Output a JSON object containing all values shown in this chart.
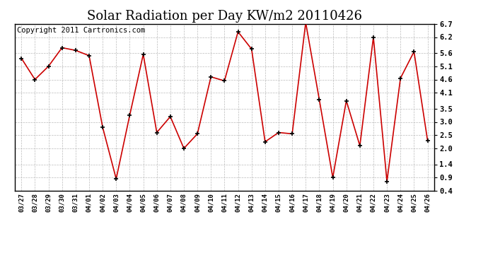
{
  "title": "Solar Radiation per Day KW/m2 20110426",
  "copyright": "Copyright 2011 Cartronics.com",
  "dates": [
    "03/27",
    "03/28",
    "03/29",
    "03/30",
    "03/31",
    "04/01",
    "04/02",
    "04/03",
    "04/04",
    "04/05",
    "04/06",
    "04/07",
    "04/08",
    "04/09",
    "04/10",
    "04/11",
    "04/12",
    "04/13",
    "04/14",
    "04/15",
    "04/16",
    "04/17",
    "04/18",
    "04/19",
    "04/20",
    "04/21",
    "04/22",
    "04/23",
    "04/24",
    "04/25",
    "04/26"
  ],
  "values": [
    5.4,
    4.6,
    5.1,
    5.8,
    5.7,
    5.5,
    2.8,
    0.85,
    3.25,
    5.55,
    2.6,
    3.2,
    2.0,
    2.55,
    4.7,
    4.55,
    6.4,
    5.75,
    2.25,
    2.6,
    2.55,
    6.75,
    3.85,
    0.9,
    3.8,
    2.1,
    6.2,
    0.75,
    4.65,
    5.65,
    2.3
  ],
  "line_color": "#cc0000",
  "marker_color": "#000000",
  "bg_color": "#ffffff",
  "grid_color": "#bbbbbb",
  "ylim": [
    0.4,
    6.7
  ],
  "ytick_vals": [
    0.4,
    0.9,
    1.4,
    2.0,
    2.5,
    3.0,
    3.5,
    4.1,
    4.6,
    5.1,
    5.6,
    6.2,
    6.7
  ],
  "ytick_labels": [
    "0.4",
    "0.9",
    "1.4",
    "2.0",
    "2.5",
    "3.0",
    "3.5",
    "4.1",
    "4.6",
    "5.1",
    "5.6",
    "6.2",
    "6.7"
  ],
  "title_fontsize": 13,
  "copyright_fontsize": 7.5
}
